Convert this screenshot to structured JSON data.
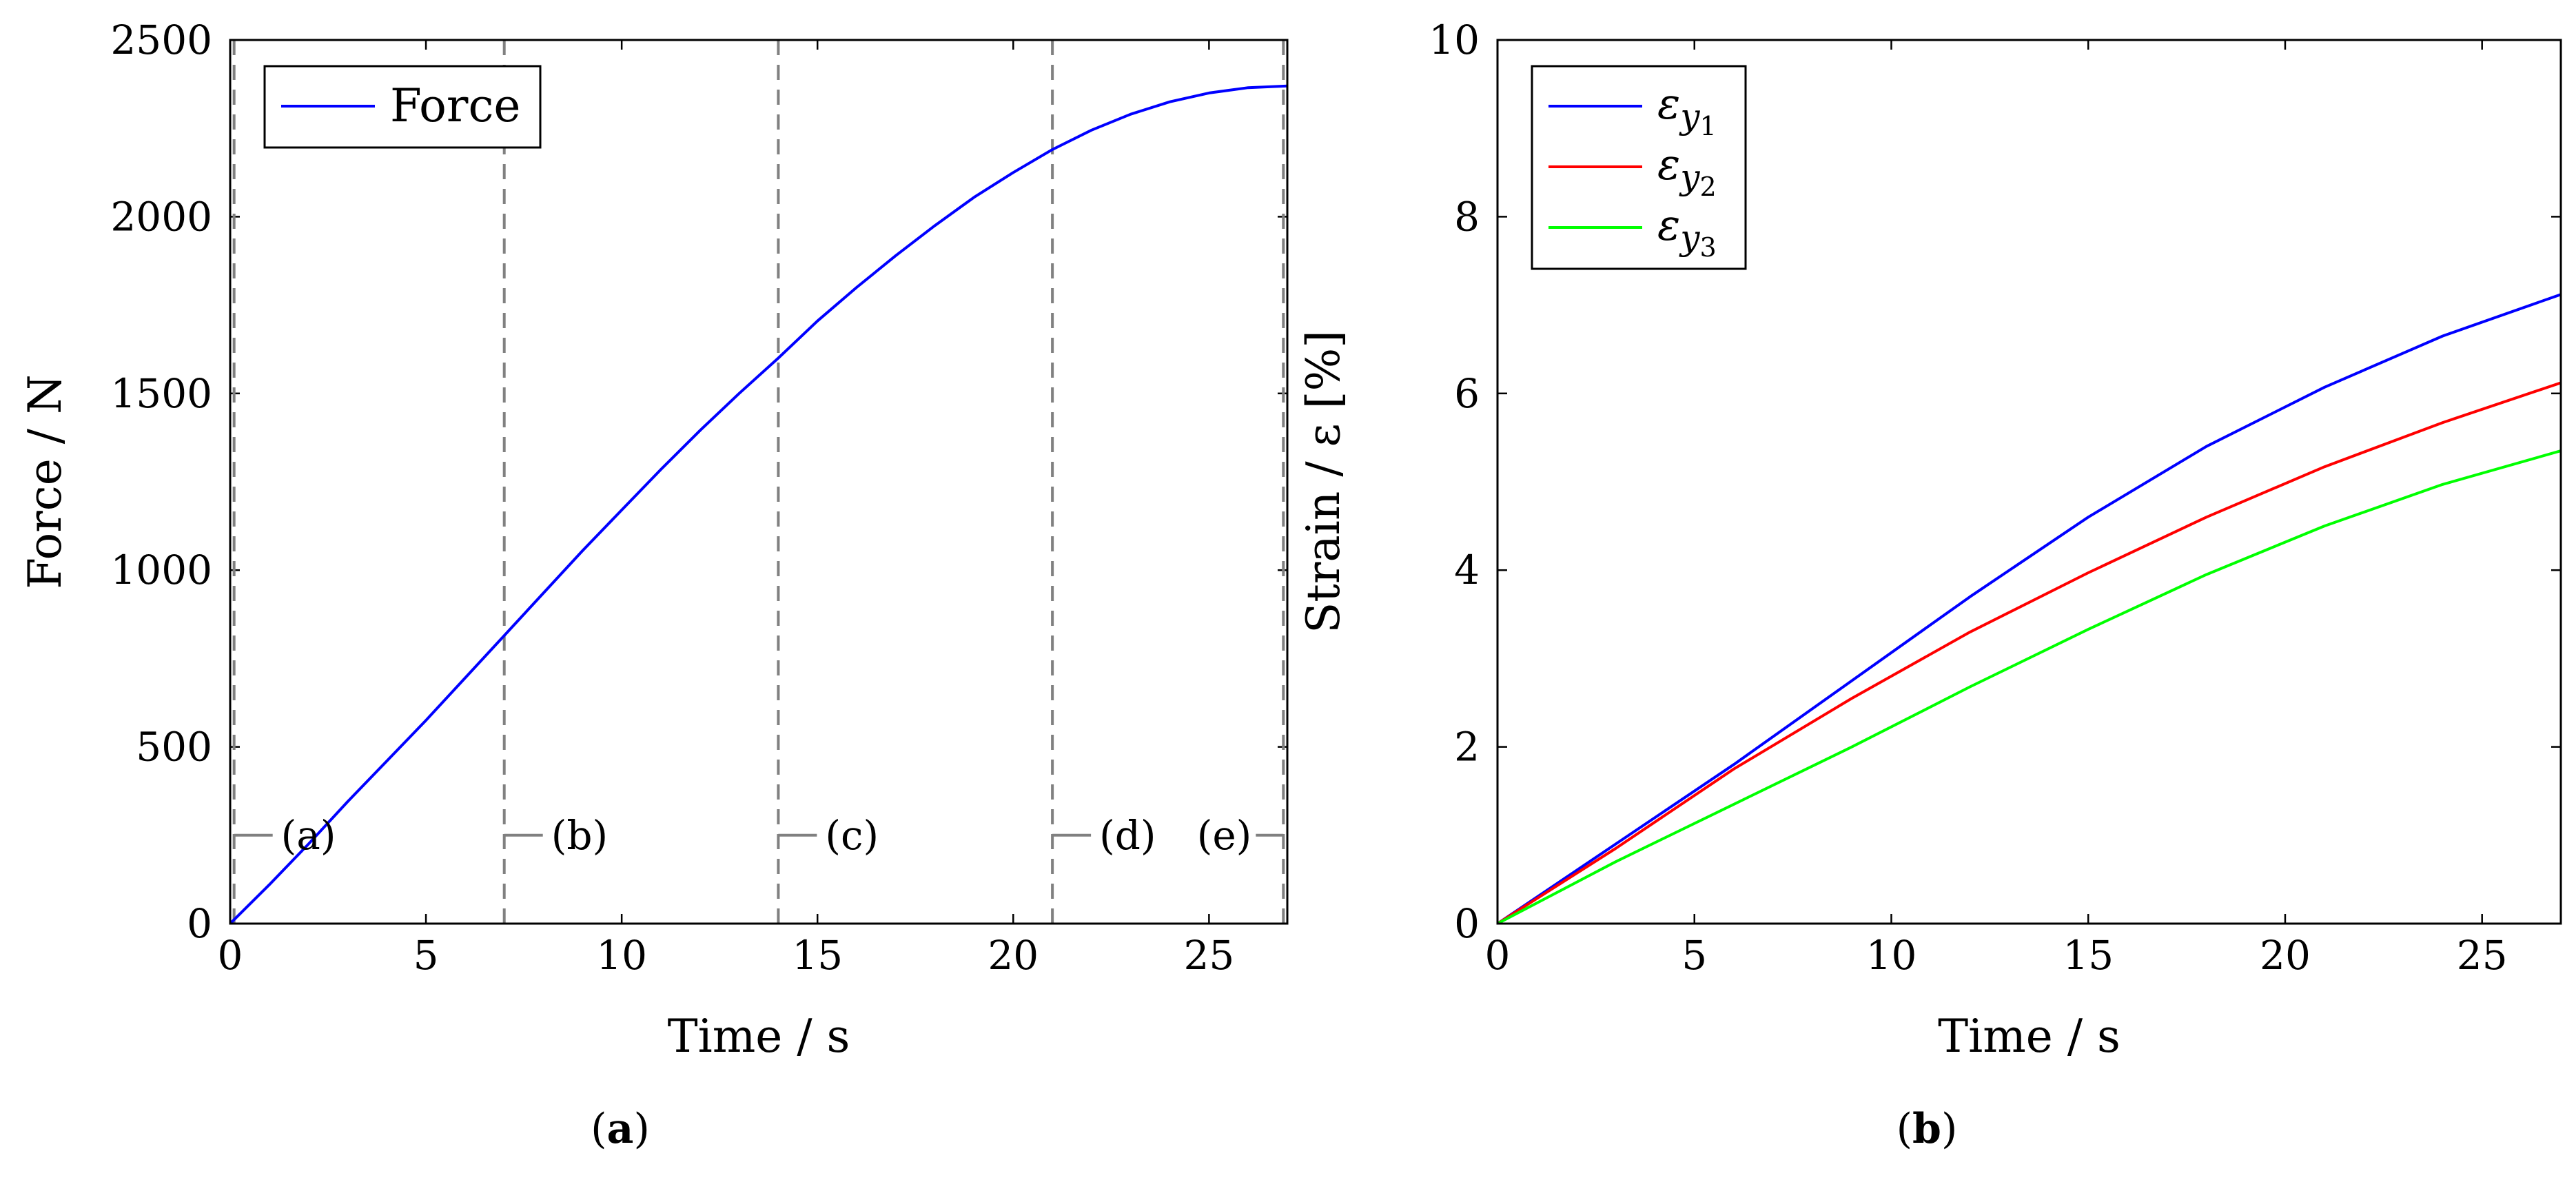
{
  "chart_data": [
    {
      "type": "line",
      "panel_label_prefix": "(",
      "panel_label_letter": "a",
      "panel_label_suffix": ")",
      "xlabel": "Time / s",
      "ylabel": "Force / N",
      "xlim": [
        0,
        27
      ],
      "ylim": [
        0,
        2500
      ],
      "xticks": [
        "0",
        "5",
        "10",
        "15",
        "20",
        "25"
      ],
      "yticks": [
        "0",
        "500",
        "1000",
        "1500",
        "2000",
        "2500"
      ],
      "legend_position": "top-left",
      "series": [
        {
          "name": "Force",
          "color": "#0000ff",
          "x": [
            0,
            1,
            2,
            3,
            4,
            5,
            6,
            7,
            8,
            9,
            10,
            11,
            12,
            13,
            14,
            15,
            16,
            17,
            18,
            19,
            20,
            21,
            22,
            23,
            24,
            25,
            26,
            27
          ],
          "y": [
            0,
            110,
            225,
            345,
            460,
            575,
            695,
            815,
            935,
            1055,
            1170,
            1285,
            1395,
            1500,
            1600,
            1705,
            1800,
            1890,
            1975,
            2055,
            2125,
            2190,
            2245,
            2290,
            2325,
            2350,
            2365,
            2370
          ]
        }
      ],
      "phase_lines": {
        "x": [
          0.1,
          7,
          14,
          21,
          26.9
        ],
        "color": "#808080"
      },
      "phase_labels": [
        {
          "text": "(a)",
          "x": 0.1,
          "y": 250
        },
        {
          "text": "(b)",
          "x": 7,
          "y": 250
        },
        {
          "text": "(c)",
          "x": 14,
          "y": 250
        },
        {
          "text": "(d)",
          "x": 21,
          "y": 250
        },
        {
          "text": "(e)",
          "x": 26.9,
          "y": 250
        }
      ]
    },
    {
      "type": "line",
      "panel_label_prefix": "(",
      "panel_label_letter": "b",
      "panel_label_suffix": ")",
      "xlabel": "Time / s",
      "ylabel": "Strain / ε [%]",
      "xlim": [
        0,
        27
      ],
      "ylim": [
        0,
        10
      ],
      "xticks": [
        "0",
        "5",
        "10",
        "15",
        "20",
        "25"
      ],
      "yticks": [
        "0",
        "2",
        "4",
        "6",
        "8",
        "10"
      ],
      "legend_position": "top-left",
      "series": [
        {
          "name": "ε_y1",
          "color": "#0000ff",
          "x": [
            0,
            3,
            6,
            9,
            12,
            15,
            18,
            21,
            24,
            27
          ],
          "y": [
            0,
            0.9,
            1.8,
            2.75,
            3.7,
            4.6,
            5.4,
            6.07,
            6.65,
            7.12
          ]
        },
        {
          "name": "ε_y2",
          "color": "#ff0000",
          "x": [
            0,
            3,
            6,
            9,
            12,
            15,
            18,
            21,
            24,
            27
          ],
          "y": [
            0,
            0.85,
            1.75,
            2.55,
            3.3,
            3.97,
            4.6,
            5.17,
            5.67,
            6.12
          ]
        },
        {
          "name": "ε_y3",
          "color": "#00ff00",
          "x": [
            0,
            3,
            6,
            9,
            12,
            15,
            18,
            21,
            24,
            27
          ],
          "y": [
            0,
            0.7,
            1.35,
            2.0,
            2.68,
            3.33,
            3.95,
            4.5,
            4.97,
            5.35
          ]
        }
      ]
    }
  ]
}
